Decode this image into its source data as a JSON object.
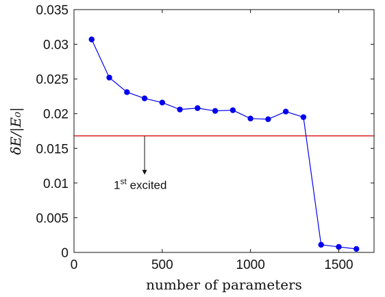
{
  "chart_data": {
    "type": "line",
    "title": "",
    "xlabel": "number of parameters",
    "ylabel": "δE/|E₀|",
    "xlim": [
      0,
      1700
    ],
    "ylim": [
      0,
      0.035
    ],
    "xticks": [
      0,
      500,
      1000,
      1500
    ],
    "xtick_labels": [
      "0",
      "500",
      "1000",
      "1500"
    ],
    "yticks": [
      0,
      0.005,
      0.01,
      0.015,
      0.02,
      0.025,
      0.03,
      0.035
    ],
    "ytick_labels": [
      "0",
      "0.005",
      "0.01",
      "0.015",
      "0.02",
      "0.025",
      "0.03",
      "0.035"
    ],
    "grid": false,
    "series": [
      {
        "color": "#0000ee",
        "x": [
          100,
          200,
          300,
          400,
          500,
          600,
          700,
          800,
          900,
          1000,
          1100,
          1200,
          1300,
          1400,
          1500,
          1600
        ],
        "y": [
          0.0307,
          0.0252,
          0.0231,
          0.0222,
          0.0216,
          0.0206,
          0.0208,
          0.0204,
          0.0205,
          0.0193,
          0.0192,
          0.0203,
          0.0195,
          0.0011,
          0.0008,
          0.0005
        ]
      }
    ],
    "reference_line": {
      "y": 0.0168,
      "color": "#e03030"
    },
    "annotation": {
      "text_sup": "st",
      "text_main": "1",
      "text_rest": " excited",
      "arrow_x": 400,
      "arrow_from_y": 0.0168,
      "arrow_to_y": 0.0112
    }
  }
}
